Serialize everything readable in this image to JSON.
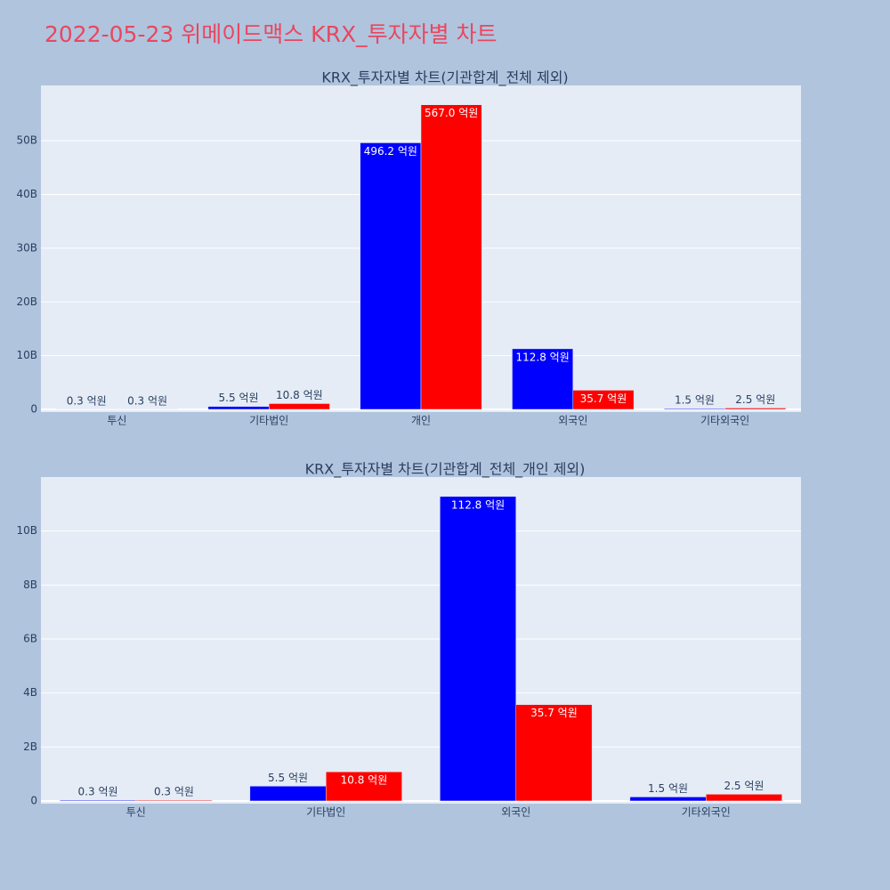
{
  "title": "2022-05-23 위메이드맥스 KRX_투자자별 차트",
  "chart_data": [
    {
      "type": "bar",
      "title": "KRX_투자자별 차트(기관합계_전체 제외)",
      "categories": [
        "투신",
        "기타법인",
        "개인",
        "외국인",
        "기타외국인"
      ],
      "series": [
        {
          "color": "#0000ff",
          "values": [
            30000000,
            550000000,
            49620000000,
            11280000000,
            150000000
          ],
          "value_labels": [
            "0.3 억원",
            "5.5 억원",
            "496.2 억원",
            "112.8 억원",
            "1.5 억원"
          ]
        },
        {
          "color": "#ff0000",
          "values": [
            30000000,
            1080000000,
            56700000000,
            3570000000,
            250000000
          ],
          "value_labels": [
            "0.3 억원",
            "10.8 억원",
            "567.0 억원",
            "35.7 억원",
            "2.5 억원"
          ]
        }
      ],
      "ylim": [
        -500000000,
        60300000000
      ],
      "yticks": [
        {
          "value": 0,
          "label": "0"
        },
        {
          "value": 10000000000,
          "label": "10B"
        },
        {
          "value": 20000000000,
          "label": "20B"
        },
        {
          "value": 30000000000,
          "label": "30B"
        },
        {
          "value": 40000000000,
          "label": "40B"
        },
        {
          "value": 50000000000,
          "label": "50B"
        }
      ],
      "grid": true
    },
    {
      "type": "bar",
      "title": "KRX_투자자별 차트(기관합계_전체_개인 제외)",
      "categories": [
        "투신",
        "기타법인",
        "외국인",
        "기타외국인"
      ],
      "series": [
        {
          "color": "#0000ff",
          "values": [
            30000000,
            550000000,
            11280000000,
            150000000
          ],
          "value_labels": [
            "0.3 억원",
            "5.5 억원",
            "112.8 억원",
            "1.5 억원"
          ]
        },
        {
          "color": "#ff0000",
          "values": [
            30000000,
            1080000000,
            3570000000,
            250000000
          ],
          "value_labels": [
            "0.3 억원",
            "10.8 억원",
            "35.7 억원",
            "2.5 억원"
          ]
        }
      ],
      "ylim": [
        -100000000,
        12000000000
      ],
      "yticks": [
        {
          "value": 0,
          "label": "0"
        },
        {
          "value": 2000000000,
          "label": "2B"
        },
        {
          "value": 4000000000,
          "label": "4B"
        },
        {
          "value": 6000000000,
          "label": "6B"
        },
        {
          "value": 8000000000,
          "label": "8B"
        },
        {
          "value": 10000000000,
          "label": "10B"
        }
      ],
      "grid": true
    }
  ]
}
